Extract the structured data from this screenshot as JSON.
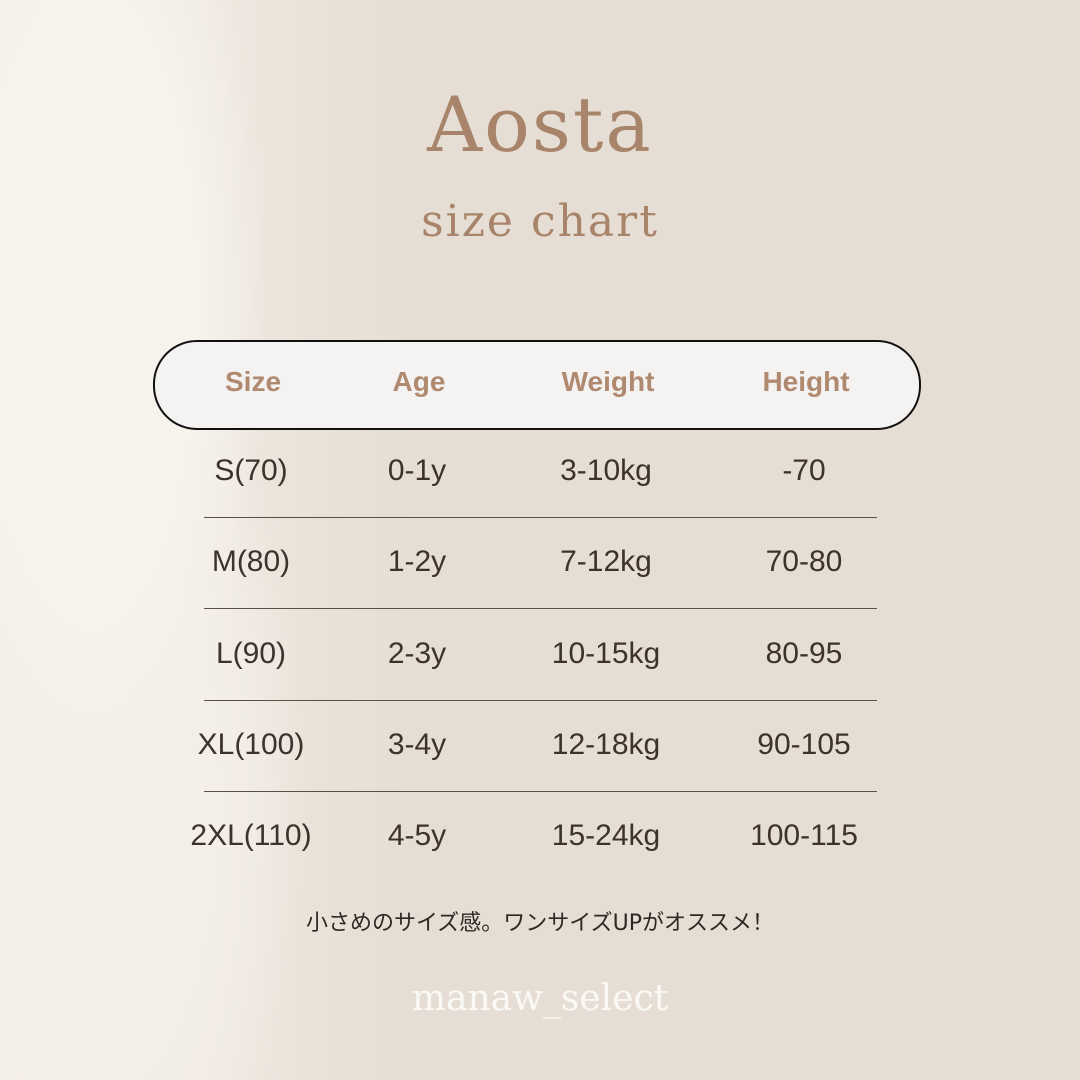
{
  "title": "Aosta",
  "subtitle": "size chart",
  "table": {
    "headers": [
      "Size",
      "Age",
      "Weight",
      "Height"
    ],
    "rows": [
      [
        "S(70)",
        "0-1y",
        "3-10kg",
        "-70"
      ],
      [
        "M(80)",
        "1-2y",
        "7-12kg",
        "70-80"
      ],
      [
        "L(90)",
        "2-3y",
        "10-15kg",
        "80-95"
      ],
      [
        "XL(100)",
        "3-4y",
        "12-18kg",
        "90-105"
      ],
      [
        "2XL(110)",
        "4-5y",
        "15-24kg",
        "100-115"
      ]
    ]
  },
  "note": "小さめのサイズ感。ワンサイズUPがオススメ！",
  "footer": "manaw_select",
  "colors": {
    "accent": "#a8846a",
    "background": "#e6ded4",
    "text": "#3d332c"
  }
}
